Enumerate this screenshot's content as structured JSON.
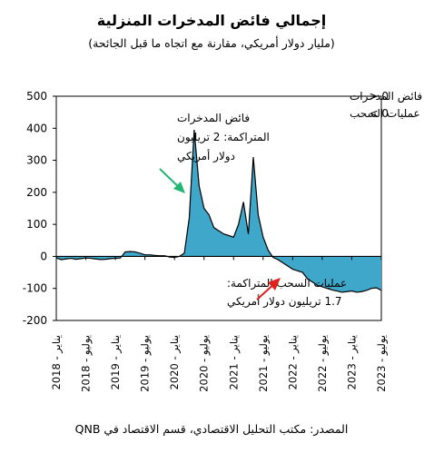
{
  "chart_data": {
    "type": "area",
    "title": "إجمالي فائض المدخرات المنزلية",
    "subtitle": "(مليار دولار أمريكي، مقارنة مع اتجاه ما قبل الجائحة)",
    "source": "المصدر: مكتب التحليل الاقتصادي، قسم الاقتصاد في QNB",
    "ylim": [
      -200,
      500
    ],
    "yticks": [
      "500",
      "400",
      "300",
      "200",
      "100",
      "0",
      "-100",
      "-200"
    ],
    "xticks": [
      "يناير - 2018",
      "يوليو - 2018",
      "يناير - 2019",
      "يوليو - 2019",
      "يناير - 2020",
      "يوليو - 2020",
      "يناير - 2021",
      "يوليو - 2021",
      "يناير - 2022",
      "يوليو - 2022",
      "يناير - 2023",
      "يوليو - 2023"
    ],
    "legend": [
      {
        "label": "فائض المدخرات",
        "symbol": "> 0",
        "color": "#3fa7c9"
      },
      {
        "label": "عمليات السحب",
        "symbol": "< 0",
        "color": "#3fa7c9"
      }
    ],
    "annotations": {
      "excess": [
        "فائض المدخرات",
        "المتراكمة: 2 تريليون",
        "دولار أمريكي"
      ],
      "drawdown": [
        "عمليات السحب المتراكمة:",
        "1.7 تريليون دولار أمريكي"
      ]
    },
    "colors": {
      "fill": "#3fa7c9",
      "line": "#000000",
      "arrow_excess": "#22b573",
      "arrow_drawdown": "#e0201b"
    },
    "series": [
      {
        "x": [
          "2018-01",
          "2018-02",
          "2018-03",
          "2018-04",
          "2018-05",
          "2018-06",
          "2018-07",
          "2018-08",
          "2018-09",
          "2018-10",
          "2018-11",
          "2018-12",
          "2019-01",
          "2019-02",
          "2019-03",
          "2019-04",
          "2019-05",
          "2019-06",
          "2019-07",
          "2019-08",
          "2019-09",
          "2019-10",
          "2019-11",
          "2019-12",
          "2020-01",
          "2020-02",
          "2020-03",
          "2020-04",
          "2020-05",
          "2020-06",
          "2020-07",
          "2020-08",
          "2020-09",
          "2020-10",
          "2020-11",
          "2020-12",
          "2021-01",
          "2021-02",
          "2021-03",
          "2021-04",
          "2021-05",
          "2021-06",
          "2021-07",
          "2021-08",
          "2021-09",
          "2021-10",
          "2021-11",
          "2021-12",
          "2022-01",
          "2022-02",
          "2022-03",
          "2022-04",
          "2022-05",
          "2022-06",
          "2022-07",
          "2022-08",
          "2022-09",
          "2022-10",
          "2022-11",
          "2022-12",
          "2023-01",
          "2023-02",
          "2023-03",
          "2023-04",
          "2023-05",
          "2023-06",
          "2023-07"
        ],
        "values": [
          -5,
          -10,
          -8,
          -6,
          -9,
          -7,
          -5,
          -6,
          -8,
          -10,
          -9,
          -7,
          -6,
          -5,
          14,
          15,
          14,
          10,
          5,
          5,
          3,
          2,
          2,
          -2,
          -3,
          0,
          10,
          120,
          395,
          220,
          150,
          130,
          90,
          80,
          70,
          65,
          60,
          100,
          170,
          70,
          310,
          130,
          60,
          20,
          -3,
          -10,
          -20,
          -30,
          -40,
          -45,
          -50,
          -70,
          -80,
          -90,
          -95,
          -100,
          -105,
          -108,
          -112,
          -110,
          -108,
          -112,
          -110,
          -106,
          -100,
          -98,
          -106
        ]
      }
    ]
  }
}
